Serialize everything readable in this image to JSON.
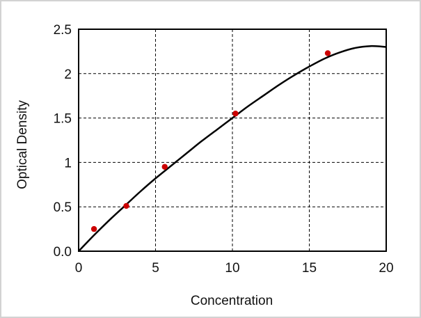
{
  "chart_data": {
    "type": "scatter",
    "xlabel": "Concentration",
    "ylabel": "Optical Density",
    "xlim": [
      0,
      20
    ],
    "ylim": [
      0,
      2.5
    ],
    "x_ticks": [
      0,
      5,
      10,
      15,
      20
    ],
    "x_tick_labels": [
      "0",
      "5",
      "10",
      "15",
      "20"
    ],
    "y_ticks": [
      0,
      0.5,
      1,
      1.5,
      2,
      2.5
    ],
    "y_tick_labels": [
      "0.0",
      "0.5",
      "1",
      "1.5",
      "2",
      "2.5"
    ],
    "grid": true,
    "points": {
      "x": [
        1.0,
        3.1,
        5.6,
        10.2,
        16.2
      ],
      "y": [
        0.25,
        0.51,
        0.95,
        1.55,
        2.23
      ],
      "color": "#cc0000"
    },
    "fit_curve": {
      "x": [
        0,
        1,
        2,
        3,
        4,
        5,
        6,
        7,
        8,
        9,
        10,
        11,
        12,
        13,
        14,
        15,
        16,
        17,
        18,
        19,
        20
      ],
      "y": [
        0.0,
        0.18,
        0.35,
        0.51,
        0.67,
        0.82,
        0.96,
        1.1,
        1.24,
        1.37,
        1.5,
        1.63,
        1.75,
        1.87,
        1.98,
        2.08,
        2.17,
        2.24,
        2.29,
        2.31,
        2.3
      ],
      "color": "#000000"
    }
  }
}
